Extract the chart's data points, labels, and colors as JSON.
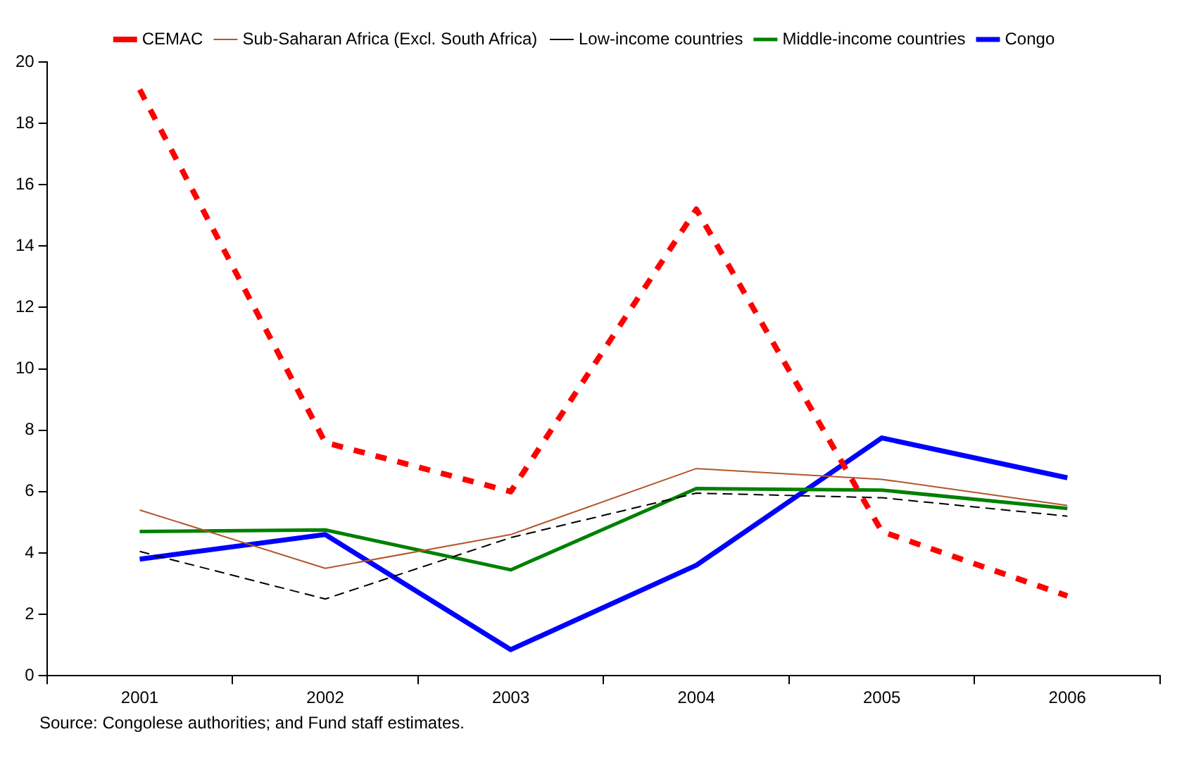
{
  "chart_data": {
    "type": "line",
    "categories": [
      "2001",
      "2002",
      "2003",
      "2004",
      "2005",
      "2006"
    ],
    "series": [
      {
        "name": "CEMAC",
        "color": "#ff0000",
        "line_style": "dashed",
        "values": [
          19.1,
          7.6,
          6.0,
          15.2,
          4.7,
          2.6
        ]
      },
      {
        "name": "Sub-Saharan Africa (Excl. South Africa)",
        "color": "#b5552b",
        "line_style": "solid",
        "values": [
          5.4,
          3.5,
          4.6,
          6.75,
          6.4,
          5.55
        ]
      },
      {
        "name": "Low-income countries",
        "color": "#000000",
        "line_style": "dashed",
        "values": [
          4.05,
          2.5,
          4.5,
          5.95,
          5.8,
          5.2
        ]
      },
      {
        "name": "Middle-income countries",
        "color": "#008000",
        "line_style": "solid",
        "values": [
          4.7,
          4.75,
          3.45,
          6.1,
          6.05,
          5.45
        ]
      },
      {
        "name": "Congo",
        "color": "#0000ff",
        "line_style": "solid",
        "values": [
          3.8,
          4.6,
          0.85,
          3.6,
          7.75,
          6.45
        ]
      }
    ],
    "ylim": [
      0,
      20
    ],
    "yticks": [
      0,
      2,
      4,
      6,
      8,
      10,
      12,
      14,
      16,
      18,
      20
    ],
    "grid": false,
    "legend": "top",
    "marker": "none",
    "annotations": [
      "Source: Congolese authorities; and Fund staff estimates."
    ]
  }
}
